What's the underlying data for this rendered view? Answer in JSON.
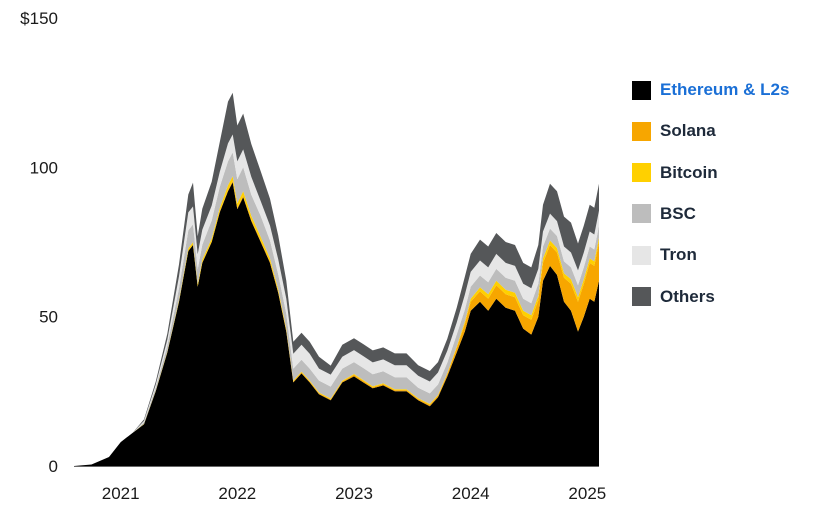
{
  "chart_data": {
    "type": "area",
    "stacked": true,
    "title": "",
    "xlabel": "",
    "ylabel": "",
    "ylim": [
      0,
      150
    ],
    "y_ticks": [
      {
        "value": 0,
        "label": "0"
      },
      {
        "value": 50,
        "label": "50"
      },
      {
        "value": 100,
        "label": "100"
      },
      {
        "value": 150,
        "label": "$150"
      }
    ],
    "xlim": [
      2020.6,
      2025.1
    ],
    "x_ticks": [
      {
        "value": 2021,
        "label": "2021"
      },
      {
        "value": 2022,
        "label": "2022"
      },
      {
        "value": 2023,
        "label": "2023"
      },
      {
        "value": 2024,
        "label": "2024"
      },
      {
        "value": 2025,
        "label": "2025"
      }
    ],
    "grid": false,
    "legend_position": "right",
    "x": [
      2020.6,
      2020.75,
      2020.9,
      2021.0,
      2021.1,
      2021.2,
      2021.3,
      2021.4,
      2021.5,
      2021.58,
      2021.62,
      2021.66,
      2021.7,
      2021.78,
      2021.85,
      2021.92,
      2021.96,
      2022.0,
      2022.05,
      2022.12,
      2022.2,
      2022.28,
      2022.35,
      2022.42,
      2022.48,
      2022.55,
      2022.62,
      2022.7,
      2022.8,
      2022.9,
      2023.0,
      2023.08,
      2023.16,
      2023.25,
      2023.35,
      2023.45,
      2023.55,
      2023.65,
      2023.72,
      2023.8,
      2023.88,
      2023.95,
      2024.0,
      2024.08,
      2024.15,
      2024.22,
      2024.3,
      2024.38,
      2024.45,
      2024.52,
      2024.58,
      2024.62,
      2024.68,
      2024.74,
      2024.8,
      2024.86,
      2024.92,
      2024.97,
      2025.02,
      2025.06,
      2025.1
    ],
    "series": [
      {
        "name": "Ethereum & L2s",
        "color": "#000000",
        "values": [
          0,
          0.5,
          3,
          8,
          11,
          14,
          25,
          38,
          55,
          72,
          74,
          60,
          68,
          75,
          85,
          92,
          95,
          86,
          90,
          82,
          75,
          68,
          58,
          45,
          28,
          31,
          28,
          24,
          22,
          28,
          30,
          28,
          26,
          27,
          25,
          25,
          22,
          20,
          23,
          30,
          38,
          45,
          52,
          55,
          52,
          56,
          53,
          52,
          46,
          44,
          50,
          62,
          67,
          64,
          55,
          52,
          45,
          50,
          56,
          55,
          62
        ]
      },
      {
        "name": "Solana",
        "color": "#f7a600",
        "values": [
          0,
          0,
          0,
          0,
          0,
          0,
          0,
          0,
          0,
          0.1,
          0.1,
          0.1,
          0.2,
          0.2,
          0.3,
          0.5,
          0.5,
          0.5,
          0.5,
          0.5,
          0.5,
          0.5,
          0.4,
          0.4,
          0.3,
          0.3,
          0.3,
          0.3,
          0.3,
          0.3,
          0.5,
          0.5,
          0.4,
          0.4,
          0.4,
          0.4,
          0.4,
          0.5,
          0.5,
          0.8,
          1.5,
          2.5,
          3,
          3.5,
          4,
          4.5,
          4.5,
          4.5,
          4.5,
          5,
          5.5,
          6,
          7,
          7.5,
          8,
          9,
          10,
          11,
          12,
          12,
          13
        ]
      },
      {
        "name": "Bitcoin",
        "color": "#ffd000",
        "values": [
          0,
          0,
          0,
          0,
          0,
          0.1,
          0.2,
          0.3,
          0.5,
          0.8,
          0.8,
          0.8,
          0.9,
          1,
          1.2,
          1.5,
          1.5,
          1.5,
          1.5,
          1.3,
          1.2,
          1,
          0.8,
          0.6,
          0.3,
          0.3,
          0.3,
          0.3,
          0.3,
          0.3,
          0.3,
          0.3,
          0.3,
          0.3,
          0.3,
          0.3,
          0.3,
          0.3,
          0.3,
          0.3,
          0.5,
          0.8,
          1,
          1.3,
          1.5,
          1.5,
          1.5,
          1.5,
          1.5,
          1.5,
          1.5,
          1.5,
          1.5,
          1.5,
          1.5,
          1.5,
          1.5,
          1.5,
          1.5,
          1.5,
          1.5
        ]
      },
      {
        "name": "BSC",
        "color": "#bdbdbd",
        "values": [
          0,
          0,
          0,
          0,
          0,
          0.5,
          1,
          2,
          4,
          6,
          6,
          5,
          5,
          6,
          7,
          8,
          8,
          8,
          8,
          7,
          7,
          6,
          5,
          5,
          4,
          4,
          4,
          4,
          4,
          4,
          4,
          4,
          4,
          4,
          4,
          4,
          3.5,
          3.5,
          3.5,
          3.5,
          4,
          4,
          4,
          4,
          4,
          4,
          4,
          4,
          4,
          4,
          4,
          4,
          4,
          4,
          4,
          4,
          4,
          4,
          4,
          4,
          4
        ]
      },
      {
        "name": "Tron",
        "color": "#e6e6e6",
        "values": [
          0,
          0,
          0,
          0,
          0,
          0.5,
          1,
          2,
          4,
          6,
          6,
          5,
          5,
          5,
          5,
          6,
          6,
          6,
          6,
          6,
          5,
          5,
          5,
          5,
          5,
          5,
          5,
          4,
          4,
          4,
          4,
          4,
          4,
          4,
          4,
          4,
          4,
          4,
          4,
          4,
          4,
          5,
          5,
          5,
          5,
          5,
          5,
          5,
          5,
          5,
          5,
          5,
          5,
          5,
          5,
          5,
          5,
          5,
          5,
          5,
          5
        ]
      },
      {
        "name": "Others",
        "color": "#555759",
        "values": [
          0,
          0,
          0,
          0,
          0,
          0.5,
          1,
          2,
          4,
          6,
          8,
          6,
          7,
          8,
          10,
          14,
          14,
          12,
          12,
          11,
          10,
          9,
          8,
          6,
          4,
          4,
          4,
          4,
          3,
          4,
          4,
          4,
          4,
          4,
          4,
          4,
          3.5,
          3.5,
          3.5,
          4,
          5,
          6,
          6,
          7,
          7,
          7,
          7,
          7,
          7,
          7,
          8,
          9,
          10,
          10,
          10,
          10,
          9,
          9,
          9,
          9,
          9
        ]
      }
    ]
  },
  "legend": {
    "items": [
      {
        "label": "Ethereum & L2s",
        "color": "#000000",
        "highlight": true
      },
      {
        "label": "Solana",
        "color": "#f7a600"
      },
      {
        "label": "Bitcoin",
        "color": "#ffd000"
      },
      {
        "label": "BSC",
        "color": "#bdbdbd"
      },
      {
        "label": "Tron",
        "color": "#e6e6e6"
      },
      {
        "label": "Others",
        "color": "#555759"
      }
    ]
  }
}
